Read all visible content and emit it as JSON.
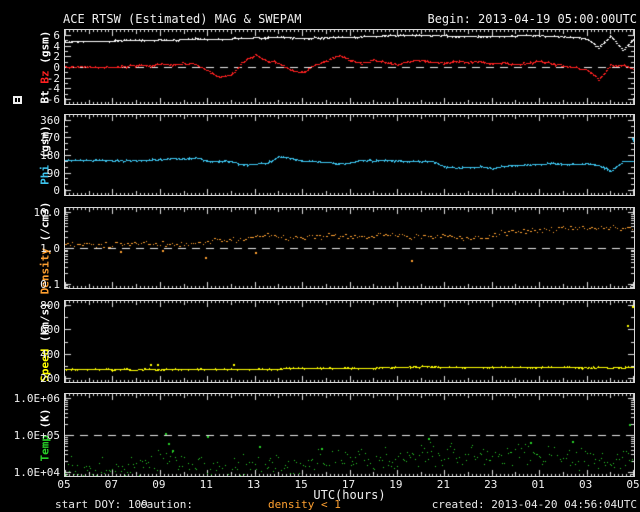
{
  "title": "ACE RTSW (Estimated) MAG & SWEPAM",
  "begin": "Begin: 2013-04-19 05:00:00UTC",
  "x_axis": {
    "label": "UTC(hours)",
    "tick_labels": [
      "05",
      "07",
      "09",
      "11",
      "13",
      "15",
      "17",
      "19",
      "21",
      "23",
      "01",
      "03",
      "05"
    ],
    "tick_values": [
      5,
      7,
      9,
      11,
      13,
      15,
      17,
      19,
      21,
      23,
      25,
      27,
      29
    ],
    "range": [
      5,
      29
    ]
  },
  "footer": {
    "start_doy": "start DOY: 109",
    "caution_label": "caution:",
    "caution_value": "density < 1",
    "created": "created: 2013-04-20 04:56:04UTC"
  },
  "colors": {
    "background": "#000000",
    "frame": "#d8d8d8",
    "bt": "#ffffff",
    "bz": "#ff2020",
    "phi": "#3dc6f0",
    "density": "#ffa030",
    "speed": "#ffff00",
    "temp": "#28d028",
    "caution": "#ffa030"
  },
  "chart_data": {
    "type": "line",
    "title": "ACE RTSW (Estimated) MAG & SWEPAM",
    "x_start": 5,
    "x_step": 0.5,
    "x_range": [
      5,
      29
    ],
    "panels": [
      {
        "name": "bt-bz",
        "ylabel_parts": [
          {
            "text": "Bt ",
            "color": "#ffffff"
          },
          {
            "text": "Bz",
            "color": "#ff2020"
          },
          {
            "text": " (gsm)",
            "color": "#ffffff"
          }
        ],
        "scale": "linear",
        "ylim": [
          -6.9,
          6.9
        ],
        "major_step": 2,
        "minor_step": 1,
        "ref_line": 0,
        "yticks": {
          "values": [
            6,
            4,
            2,
            0,
            -2,
            -4,
            -6
          ],
          "labels": [
            "6",
            "4",
            "2",
            "0",
            "-2",
            "-4",
            "-6"
          ]
        },
        "series": [
          {
            "name": "Bt",
            "color": "#ffffff",
            "mode": "line",
            "jitter": 0.07,
            "sub": 8,
            "y": [
              4.7,
              4.8,
              4.8,
              4.9,
              4.9,
              5.0,
              5.0,
              5.0,
              5.1,
              5.1,
              5.2,
              5.3,
              5.2,
              5.2,
              5.3,
              5.4,
              5.5,
              5.5,
              5.6,
              5.5,
              5.4,
              5.5,
              5.5,
              5.6,
              5.6,
              5.7,
              5.8,
              5.9,
              5.9,
              6.0,
              6.0,
              5.9,
              5.9,
              5.8,
              5.8,
              5.7,
              5.8,
              5.8,
              5.9,
              5.9,
              5.9,
              5.8,
              5.7,
              5.6,
              5.3,
              3.6,
              5.8,
              3.2,
              5.5
            ]
          },
          {
            "name": "Bz",
            "color": "#ff2020",
            "mode": "line",
            "jitter": 0.2,
            "sub": 8,
            "y": [
              0,
              0,
              0.1,
              0,
              0,
              0.2,
              0.4,
              0.3,
              0.6,
              0.4,
              0.8,
              0.5,
              -0.6,
              -1.9,
              -1.4,
              1.0,
              2.3,
              1.2,
              0.8,
              -0.6,
              -1.0,
              0.4,
              1.1,
              2.2,
              1.4,
              0.7,
              1.3,
              0.9,
              0.6,
              1.1,
              1.3,
              0.9,
              0.7,
              1.1,
              0.9,
              1.0,
              0.6,
              0.8,
              0.5,
              0.8,
              1.1,
              0.7,
              0.3,
              0,
              -0.5,
              -2.3,
              0.4,
              0.3,
              -0.4
            ]
          }
        ]
      },
      {
        "name": "phi",
        "ylabel_parts": [
          {
            "text": "Phi",
            "color": "#3dc6f0"
          },
          {
            "text": " (gsm)",
            "color": "#ffffff"
          }
        ],
        "scale": "linear",
        "ylim": [
          -25,
          385
        ],
        "major_step": 90,
        "minor_step": 30,
        "ref_line": null,
        "yticks": {
          "values": [
            360,
            270,
            180,
            90,
            0
          ],
          "labels": [
            "360",
            "270",
            "180",
            "90",
            "0"
          ]
        },
        "series": [
          {
            "name": "Phi",
            "color": "#3dc6f0",
            "mode": "line",
            "jitter": 3,
            "sub": 8,
            "y": [
              155,
              155,
              153,
              154,
              152,
              153,
              152,
              155,
              158,
              165,
              160,
              168,
              150,
              148,
              150,
              130,
              135,
              140,
              172,
              165,
              150,
              148,
              145,
              135,
              140,
              155,
              150,
              155,
              152,
              150,
              148,
              150,
              120,
              115,
              118,
              122,
              112,
              125,
              128,
              130,
              135,
              138,
              135,
              132,
              138,
              128,
              100,
              148,
              150
            ],
            "outliers": [
              [
                28.9,
                268
              ],
              [
                28.95,
                255
              ]
            ]
          }
        ]
      },
      {
        "name": "density",
        "ylabel_parts": [
          {
            "text": "Density",
            "color": "#ffa030"
          },
          {
            "text": " (/cm3)",
            "color": "#ffffff"
          }
        ],
        "scale": "log",
        "ylim": [
          -1.12,
          1.12
        ],
        "ref_line": 1,
        "yticks": {
          "values": [
            10,
            1,
            0.1
          ],
          "labels": [
            "10.0",
            "1.0",
            "0.1"
          ]
        },
        "series": [
          {
            "name": "Density",
            "color": "#ffa030",
            "mode": "scatter",
            "jitter": 0.09,
            "sub": 5,
            "y": [
              1.3,
              1.25,
              1.3,
              1.2,
              1.25,
              1.3,
              1.4,
              1.5,
              1.3,
              1.35,
              1.3,
              1.4,
              1.6,
              1.7,
              1.8,
              1.7,
              2.3,
              2.5,
              2.2,
              2.0,
              1.9,
              2.1,
              2.3,
              2.2,
              2.0,
              2.2,
              2.4,
              2.3,
              2.2,
              2.1,
              2.2,
              2.0,
              2.1,
              2.2,
              1.9,
              2.0,
              2.4,
              2.8,
              3.0,
              3.2,
              3.0,
              3.3,
              3.5,
              3.4,
              3.8,
              3.6,
              3.9,
              3.7,
              4.0
            ],
            "outliers": [
              [
                7.3,
                0.85
              ],
              [
                9.1,
                0.9
              ],
              [
                10.9,
                0.55
              ],
              [
                13.0,
                0.75
              ],
              [
                19.6,
                0.45
              ]
            ]
          }
        ]
      },
      {
        "name": "speed",
        "ylabel_parts": [
          {
            "text": "Speed",
            "color": "#ffff00"
          },
          {
            "text": " (km/s)",
            "color": "#ffffff"
          }
        ],
        "scale": "linear",
        "ylim": [
          165,
          835
        ],
        "major_step": 200,
        "minor_step": 100,
        "ref_line": null,
        "yticks": {
          "values": [
            800,
            600,
            400,
            200
          ],
          "labels": [
            "800",
            "600",
            "400",
            "200"
          ]
        },
        "series": [
          {
            "name": "Speed",
            "color": "#ffff00",
            "mode": "line",
            "jitter": 2.5,
            "sub": 8,
            "y": [
              272,
              270,
              271,
              270,
              269,
              270,
              268,
              270,
              269,
              271,
              270,
              272,
              271,
              273,
              272,
              274,
              273,
              275,
              276,
              278,
              277,
              280,
              279,
              281,
              280,
              282,
              284,
              286,
              288,
              292,
              294,
              293,
              290,
              289,
              290,
              291,
              289,
              288,
              290,
              289,
              287,
              288,
              286,
              287,
              285,
              286,
              284,
              285,
              286
            ],
            "outliers": [
              [
                8.6,
                318
              ],
              [
                8.9,
                315
              ],
              [
                12.1,
                316
              ],
              [
                28.7,
                640
              ],
              [
                28.9,
                795
              ]
            ]
          }
        ]
      },
      {
        "name": "temp",
        "ylabel_parts": [
          {
            "text": "Temp",
            "color": "#28d028"
          },
          {
            "text": " (K)",
            "color": "#ffffff"
          }
        ],
        "scale": "log",
        "ylim": [
          3.89,
          6.11
        ],
        "ref_line": 100000,
        "yticks": {
          "values": [
            1000000,
            100000,
            10000
          ],
          "labels": [
            "1.0E+06",
            "1.0E+05",
            "1.0E+04"
          ]
        },
        "series": [
          {
            "name": "Temp",
            "color": "#28d028",
            "mode": "scatter-dense",
            "jitter": 0.4,
            "sub": 4,
            "y": [
              13000,
              12000,
              13000,
              12000,
              14000,
              12000,
              15000,
              20000,
              25000,
              18000,
              15000,
              13000,
              12000,
              13000,
              12000,
              14000,
              15000,
              16000,
              15000,
              17000,
              16000,
              18000,
              20000,
              22000,
              20000,
              22000,
              24000,
              22000,
              25000,
              28000,
              30000,
              32000,
              30000,
              28000,
              30000,
              32000,
              28000,
              26000,
              30000,
              28000,
              25000,
              26000,
              28000,
              25000,
              22000,
              24000,
              22000,
              20000,
              24000
            ],
            "outliers": [
              [
                9.2,
                115000
              ],
              [
                9.35,
                62000
              ],
              [
                9.5,
                40000
              ],
              [
                11.0,
                95000
              ],
              [
                13.2,
                50000
              ],
              [
                15.8,
                45000
              ],
              [
                20.3,
                85000
              ],
              [
                24.6,
                65000
              ],
              [
                26.4,
                70000
              ],
              [
                28.8,
                200000
              ]
            ]
          }
        ]
      }
    ]
  }
}
